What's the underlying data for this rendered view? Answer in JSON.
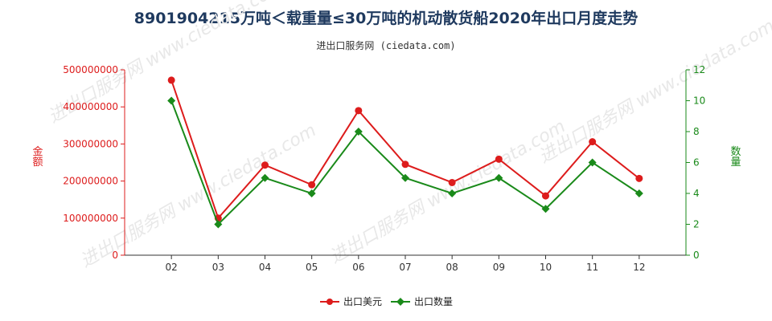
{
  "chart_data": {
    "type": "line",
    "title": "8901904215万吨＜载重量≤30万吨的机动散货船2020年出口月度走势",
    "subtitle": "进出口服务网 (ciedata.com)",
    "watermark": "进出口服务网 www.ciedata.com",
    "categories": [
      "02",
      "03",
      "04",
      "05",
      "06",
      "07",
      "08",
      "09",
      "10",
      "11",
      "12"
    ],
    "series": [
      {
        "name": "出口美元",
        "axis": "left",
        "color": "#dd1c1c",
        "values": [
          472000000,
          100000000,
          243000000,
          190000000,
          390000000,
          245000000,
          196000000,
          259000000,
          160000000,
          306000000,
          207000000
        ]
      },
      {
        "name": "出口数量",
        "axis": "right",
        "color": "#1a8a1a",
        "values": [
          10,
          2,
          5,
          4,
          8,
          5,
          4,
          5,
          3,
          6,
          4
        ]
      }
    ],
    "ylabel_left": "金额",
    "ylabel_right": "数量",
    "ylim_left": [
      0,
      500000000
    ],
    "ylim_right": [
      0,
      12
    ],
    "yticks_left": [
      "0",
      "100000000",
      "200000000",
      "300000000",
      "400000000",
      "500000000"
    ],
    "yticks_right": [
      "0",
      "2",
      "4",
      "6",
      "8",
      "10",
      "12"
    ],
    "legend_position": "bottom-center",
    "grid": false
  }
}
